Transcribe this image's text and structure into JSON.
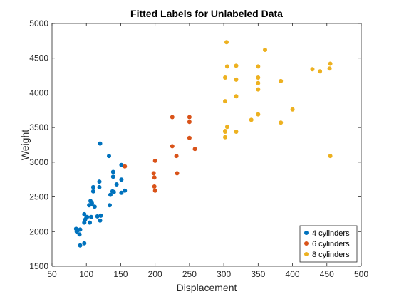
{
  "chart_data": {
    "type": "scatter",
    "title": "Fitted Labels for Unlabeled Data",
    "xlabel": "Displacement",
    "ylabel": "Weight",
    "xlim": [
      50,
      500
    ],
    "ylim": [
      1500,
      5000
    ],
    "xticks": [
      50,
      100,
      150,
      200,
      250,
      300,
      350,
      400,
      450,
      500
    ],
    "yticks": [
      1500,
      2000,
      2500,
      3000,
      3500,
      4000,
      4500,
      5000
    ],
    "grid": false,
    "legend_position": "bottom-right",
    "series": [
      {
        "name": "4 cylinders",
        "color": "#0072BD",
        "points": [
          [
            85,
            2040
          ],
          [
            86,
            2000
          ],
          [
            88,
            2020
          ],
          [
            90,
            1960
          ],
          [
            91,
            2030
          ],
          [
            91,
            1800
          ],
          [
            97,
            1830
          ],
          [
            97,
            2130
          ],
          [
            97,
            2250
          ],
          [
            98,
            2170
          ],
          [
            100,
            2200
          ],
          [
            101,
            2210
          ],
          [
            104,
            2380
          ],
          [
            105,
            2130
          ],
          [
            106,
            2440
          ],
          [
            107,
            2210
          ],
          [
            108,
            2410
          ],
          [
            108,
            2400
          ],
          [
            110,
            2580
          ],
          [
            110,
            2640
          ],
          [
            112,
            2360
          ],
          [
            116,
            2220
          ],
          [
            119,
            2720
          ],
          [
            119,
            2640
          ],
          [
            120,
            2160
          ],
          [
            120,
            3270
          ],
          [
            121,
            2230
          ],
          [
            133,
            3090
          ],
          [
            134,
            2380
          ],
          [
            135,
            2530
          ],
          [
            138,
            2580
          ],
          [
            139,
            2860
          ],
          [
            139,
            2790
          ],
          [
            140,
            2570
          ],
          [
            144,
            2680
          ],
          [
            151,
            2960
          ],
          [
            151,
            2750
          ],
          [
            151,
            2560
          ],
          [
            156,
            2590
          ]
        ]
      },
      {
        "name": "6 cylinders",
        "color": "#D95319",
        "points": [
          [
            156,
            2940
          ],
          [
            198,
            2840
          ],
          [
            199,
            2780
          ],
          [
            199,
            2650
          ],
          [
            200,
            3020
          ],
          [
            200,
            2590
          ],
          [
            225,
            3230
          ],
          [
            225,
            3650
          ],
          [
            231,
            3090
          ],
          [
            232,
            2840
          ],
          [
            250,
            3650
          ],
          [
            250,
            3580
          ],
          [
            250,
            3350
          ],
          [
            258,
            3190
          ]
        ]
      },
      {
        "name": "8 cylinders",
        "color": "#EDB120",
        "points": [
          [
            302,
            3360
          ],
          [
            302,
            3440
          ],
          [
            302,
            3450
          ],
          [
            302,
            3880
          ],
          [
            302,
            4220
          ],
          [
            304,
            4730
          ],
          [
            305,
            3510
          ],
          [
            305,
            4380
          ],
          [
            318,
            3440
          ],
          [
            318,
            3950
          ],
          [
            318,
            4190
          ],
          [
            318,
            4390
          ],
          [
            340,
            3610
          ],
          [
            350,
            3690
          ],
          [
            350,
            4050
          ],
          [
            350,
            4140
          ],
          [
            350,
            4220
          ],
          [
            350,
            4380
          ],
          [
            360,
            4620
          ],
          [
            383,
            3570
          ],
          [
            383,
            4170
          ],
          [
            400,
            3760
          ],
          [
            429,
            4340
          ],
          [
            440,
            4310
          ],
          [
            454,
            4350
          ],
          [
            455,
            4420
          ],
          [
            455,
            3090
          ]
        ]
      }
    ]
  }
}
